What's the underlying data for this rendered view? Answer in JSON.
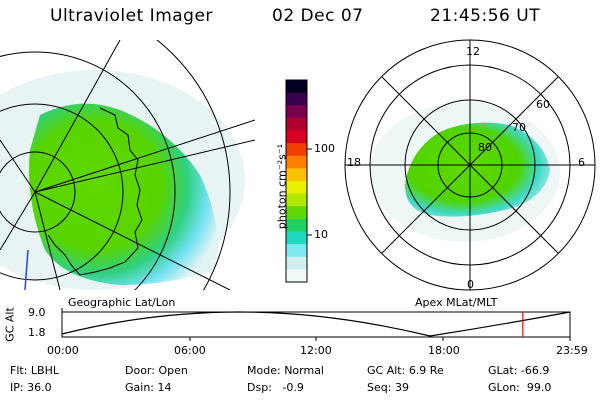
{
  "header": {
    "instrument": "Ultraviolet Imager",
    "date": "02 Dec 07",
    "time": "21:45:56 UT"
  },
  "left_panel": {
    "label": "Geographic Lat/Lon"
  },
  "right_panel": {
    "label": "Apex MLat/MLT",
    "mlt_labels": [
      "12",
      "18",
      "6",
      "0"
    ],
    "lat_labels": [
      "60",
      "70",
      "80"
    ]
  },
  "colorbar": {
    "unit": "photon cm⁻²s⁻¹",
    "ticks": [
      "100",
      "10"
    ],
    "colors": [
      "#000020",
      "#3a0050",
      "#7a0050",
      "#b00030",
      "#d80020",
      "#f04000",
      "#ff8000",
      "#ffc000",
      "#e8f000",
      "#b0e800",
      "#60d800",
      "#20d060",
      "#20d8c0",
      "#80e8f0",
      "#d0f0f0",
      "#f0f8f8"
    ]
  },
  "alt_plot": {
    "ylabel": "GC Alt",
    "yticks": [
      "9.0",
      "1.8"
    ],
    "xticks": [
      "00:00",
      "06:00",
      "12:00",
      "18:00",
      "23:59"
    ],
    "marker_color": "#ff0000",
    "marker_time_hours": 21.77
  },
  "status": {
    "flt_label": "Flt:",
    "flt_value": "LBHL",
    "ip_label": "IP:",
    "ip_value": "36.0",
    "door_label": "Door:",
    "door_value": "Open",
    "gain_label": "Gain:",
    "gain_value": "14",
    "mode_label": "Mode:",
    "mode_value": "Normal",
    "dsp_label": "Dsp:",
    "dsp_value": "-0.9",
    "gcalt_label": "GC Alt:",
    "gcalt_value": "6.9 Re",
    "seq_label": "Seq:",
    "seq_value": "39",
    "glat_label": "GLat:",
    "glat_value": "-66.9",
    "glon_label": "GLon:",
    "glon_value": "99.0"
  }
}
